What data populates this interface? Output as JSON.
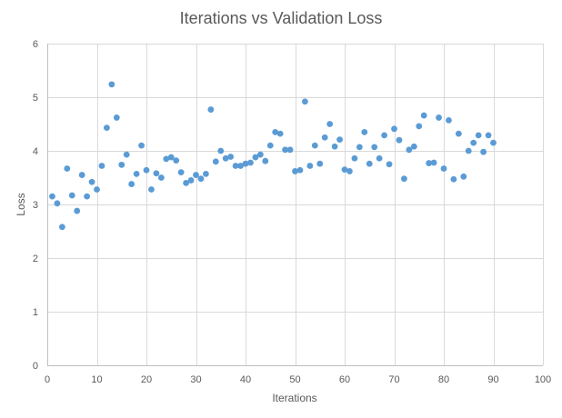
{
  "chart_data": {
    "type": "scatter",
    "title": "Iterations vs Validation Loss",
    "xlabel": "Iterations",
    "ylabel": "Loss",
    "xlim": [
      0,
      100
    ],
    "ylim": [
      0,
      6
    ],
    "x_ticks": [
      0,
      10,
      20,
      30,
      40,
      50,
      60,
      70,
      80,
      90,
      100
    ],
    "y_ticks": [
      0,
      1,
      2,
      3,
      4,
      5,
      6
    ],
    "grid": true,
    "point_color": "#5b9bd5",
    "series": [
      {
        "x": [
          1,
          2,
          3,
          4,
          5,
          6,
          7,
          8,
          9,
          10,
          11,
          12,
          13,
          14,
          15,
          16,
          17,
          18,
          19,
          20,
          21,
          22,
          23,
          24,
          25,
          26,
          27,
          28,
          29,
          30,
          31,
          32,
          33,
          34,
          35,
          36,
          37,
          38,
          39,
          40,
          41,
          42,
          43,
          44,
          45,
          46,
          47,
          48,
          49,
          50,
          51,
          52,
          53,
          54,
          55,
          56,
          57,
          58,
          59,
          60,
          61,
          62,
          63,
          64,
          65,
          66,
          67,
          68,
          69,
          70,
          71,
          72,
          73,
          74,
          75,
          76,
          77,
          78,
          79,
          80,
          81,
          82,
          83,
          84,
          85,
          86,
          87,
          88,
          89,
          90
        ],
        "y": [
          3.15,
          3.02,
          2.58,
          3.67,
          3.17,
          2.88,
          3.55,
          3.15,
          3.42,
          3.28,
          3.72,
          4.43,
          5.24,
          4.62,
          3.74,
          3.93,
          3.38,
          3.57,
          4.1,
          3.64,
          3.28,
          3.58,
          3.5,
          3.85,
          3.88,
          3.82,
          3.6,
          3.4,
          3.45,
          3.55,
          3.48,
          3.57,
          4.77,
          3.8,
          4.0,
          3.86,
          3.89,
          3.72,
          3.72,
          3.76,
          3.78,
          3.88,
          3.93,
          3.81,
          4.1,
          4.35,
          4.32,
          4.02,
          4.02,
          3.62,
          3.64,
          4.92,
          3.72,
          4.1,
          3.76,
          4.25,
          4.5,
          4.08,
          4.21,
          3.65,
          3.62,
          3.86,
          4.07,
          4.35,
          3.76,
          4.07,
          3.86,
          4.29,
          3.75,
          4.41,
          4.2,
          3.48,
          4.02,
          4.08,
          4.46,
          4.66,
          3.77,
          3.78,
          4.62,
          3.67,
          4.57,
          3.47,
          4.32,
          3.52,
          4.0,
          4.15,
          4.29,
          3.98,
          4.29,
          4.15
        ]
      }
    ]
  }
}
